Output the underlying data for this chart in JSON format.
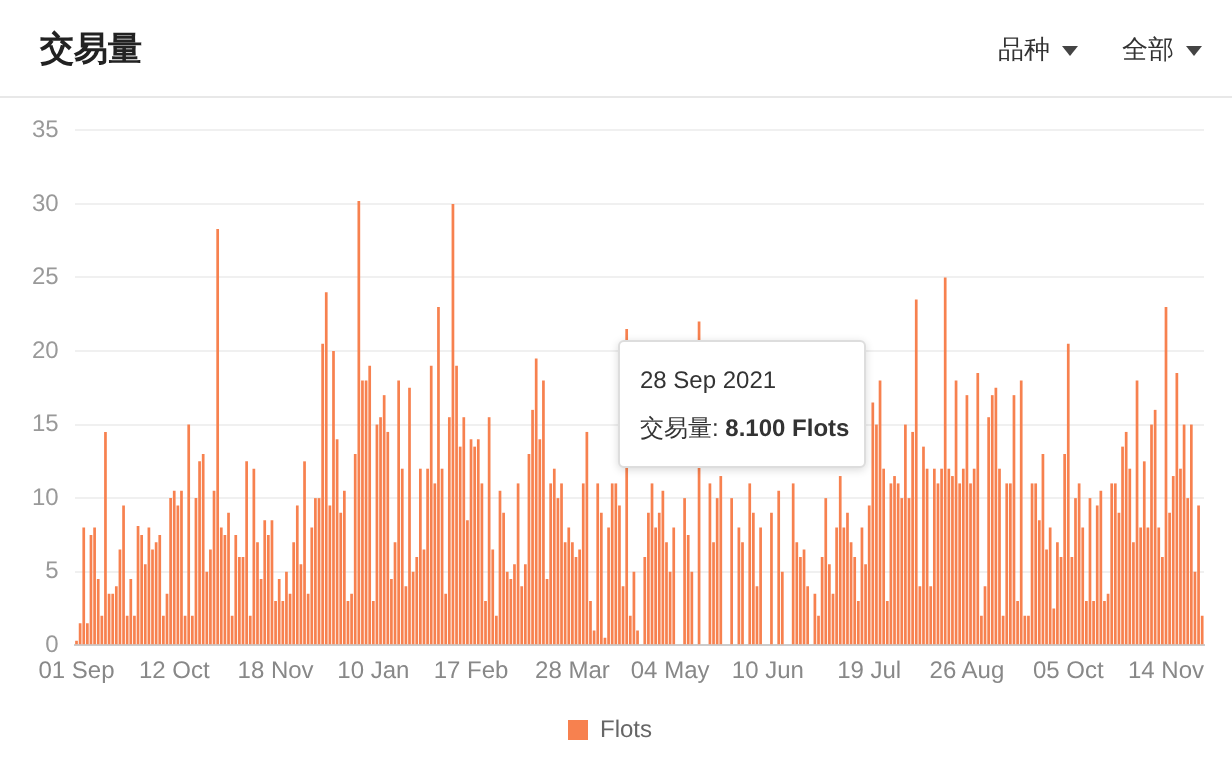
{
  "chart_data": {
    "type": "bar",
    "title": "交易量",
    "categories": [
      "01 Sep",
      null,
      null,
      null,
      null,
      null,
      null,
      null,
      null,
      null,
      null,
      null,
      null,
      null,
      null,
      null,
      null,
      null,
      null,
      null,
      null,
      null,
      null,
      null,
      null,
      null,
      null,
      "12 Oct",
      null,
      null,
      null,
      null,
      null,
      null,
      null,
      null,
      null,
      null,
      null,
      null,
      null,
      null,
      null,
      null,
      null,
      null,
      null,
      null,
      null,
      null,
      null,
      null,
      null,
      null,
      null,
      "18 Nov",
      null,
      null,
      null,
      null,
      null,
      null,
      null,
      null,
      null,
      null,
      null,
      null,
      null,
      null,
      null,
      null,
      null,
      null,
      null,
      null,
      null,
      null,
      null,
      null,
      null,
      null,
      "10 Jan",
      null,
      null,
      null,
      null,
      null,
      null,
      null,
      null,
      null,
      null,
      null,
      null,
      null,
      null,
      null,
      null,
      null,
      null,
      null,
      null,
      null,
      null,
      null,
      null,
      null,
      null,
      "17 Feb",
      null,
      null,
      null,
      null,
      null,
      null,
      null,
      null,
      null,
      null,
      null,
      null,
      null,
      null,
      null,
      null,
      null,
      null,
      null,
      null,
      null,
      null,
      null,
      null,
      null,
      null,
      null,
      "28 Mar",
      null,
      null,
      null,
      null,
      null,
      null,
      null,
      null,
      null,
      null,
      null,
      null,
      null,
      null,
      null,
      null,
      null,
      null,
      null,
      null,
      null,
      null,
      null,
      null,
      null,
      null,
      "04 May",
      null,
      null,
      null,
      null,
      null,
      null,
      null,
      null,
      null,
      null,
      null,
      null,
      null,
      null,
      null,
      null,
      null,
      null,
      null,
      null,
      null,
      null,
      null,
      null,
      null,
      null,
      "10 Jun",
      null,
      null,
      null,
      null,
      null,
      null,
      null,
      null,
      null,
      null,
      null,
      null,
      null,
      null,
      null,
      null,
      null,
      null,
      null,
      null,
      null,
      null,
      null,
      null,
      null,
      null,
      null,
      "19 Jul",
      null,
      null,
      null,
      null,
      null,
      null,
      null,
      null,
      null,
      null,
      null,
      null,
      null,
      null,
      null,
      null,
      null,
      null,
      null,
      null,
      null,
      null,
      null,
      null,
      null,
      null,
      "26 Aug",
      null,
      null,
      null,
      null,
      null,
      null,
      null,
      null,
      null,
      null,
      null,
      null,
      null,
      null,
      null,
      null,
      null,
      null,
      null,
      null,
      null,
      null,
      null,
      null,
      null,
      null,
      null,
      "05 Oct",
      null,
      null,
      null,
      null,
      null,
      null,
      null,
      null,
      null,
      null,
      null,
      null,
      null,
      null,
      null,
      null,
      null,
      null,
      null,
      null,
      null,
      null,
      null,
      null,
      null,
      null,
      "14 Nov",
      null,
      null,
      null,
      null,
      null,
      null,
      null,
      null,
      null,
      null
    ],
    "series": [
      {
        "name": "Flots",
        "color": "#f7814f",
        "values": [
          0.3,
          1.5,
          8,
          1.5,
          7.5,
          8,
          4.5,
          2,
          14.5,
          3.5,
          3.5,
          4,
          6.5,
          9.5,
          2,
          4.5,
          2,
          8.1,
          7.5,
          5.5,
          8,
          6.5,
          7,
          7.5,
          2,
          3.5,
          10,
          10.5,
          9.5,
          10.5,
          2,
          15,
          2,
          10,
          12.5,
          13,
          5,
          6.5,
          10.5,
          28.3,
          8,
          7.5,
          9,
          2,
          7.5,
          6,
          6,
          12.5,
          2,
          12,
          7,
          4.5,
          8.5,
          7.5,
          8.5,
          3,
          4.5,
          3,
          5,
          3.5,
          7,
          9.5,
          5.5,
          12.5,
          3.5,
          8,
          10,
          10,
          20.5,
          24,
          9.5,
          20,
          14,
          9,
          10.5,
          3,
          3.5,
          13,
          30.2,
          18,
          18,
          19,
          3,
          15,
          15.5,
          17,
          14.5,
          4.5,
          7,
          18,
          12,
          4,
          17.5,
          5,
          6,
          12,
          6.5,
          12,
          19,
          11,
          23,
          12,
          3.5,
          15.5,
          30,
          19,
          13.5,
          15.5,
          8.5,
          14,
          13.5,
          14,
          11,
          3,
          15.5,
          6.5,
          2,
          10.5,
          9,
          5,
          4.5,
          5.5,
          11,
          4,
          5.5,
          13,
          16,
          19.5,
          14,
          18,
          4.5,
          11,
          12,
          10,
          11,
          7,
          8,
          7,
          6,
          6.5,
          11,
          14.5,
          3,
          1,
          11,
          9,
          0.5,
          8,
          11,
          11,
          9.5,
          4,
          21.5,
          2,
          5,
          1,
          null,
          6,
          9,
          11,
          8,
          9,
          10.5,
          7,
          5,
          8,
          null,
          null,
          10,
          7.5,
          5,
          null,
          22,
          null,
          null,
          11,
          7,
          10,
          11.5,
          null,
          null,
          10,
          null,
          8,
          7,
          null,
          11,
          9,
          4,
          8,
          null,
          null,
          9,
          null,
          10.5,
          5,
          null,
          null,
          11,
          7,
          6,
          6.5,
          4,
          null,
          3.5,
          2,
          6,
          10,
          5.5,
          3.5,
          8,
          11.5,
          8,
          9,
          7,
          6,
          3,
          8,
          5.5,
          9.5,
          16.5,
          15,
          18,
          12,
          3,
          11,
          11.5,
          11,
          10,
          15,
          10,
          14.5,
          23.5,
          4,
          13.5,
          12,
          4,
          12,
          11,
          12,
          25,
          12,
          11.5,
          18,
          11,
          12,
          17,
          11,
          12,
          18.5,
          2,
          4,
          15.5,
          17,
          17.5,
          12,
          2,
          11,
          11,
          17,
          3,
          18,
          2,
          2,
          11,
          11,
          8.5,
          13,
          6.5,
          8,
          2.5,
          7,
          6,
          13,
          20.5,
          6,
          10,
          11,
          8,
          3,
          10,
          3,
          9.5,
          10.5,
          3,
          3.5,
          11,
          11,
          9,
          13.5,
          14.5,
          12,
          7,
          18,
          8,
          12.5,
          8,
          15,
          16,
          8,
          6,
          23,
          9,
          11.5,
          18.5,
          12,
          15,
          10,
          15,
          5,
          9.5,
          2
        ]
      }
    ],
    "ylim": [
      0,
      35
    ],
    "yticks": [
      0,
      5,
      10,
      15,
      20,
      25,
      30,
      35
    ],
    "grid": "y",
    "legend": "bottom",
    "annotations": [
      "28 Sep 2021",
      "交易量: 8.100 Flots",
      "品种",
      "全部"
    ]
  }
}
